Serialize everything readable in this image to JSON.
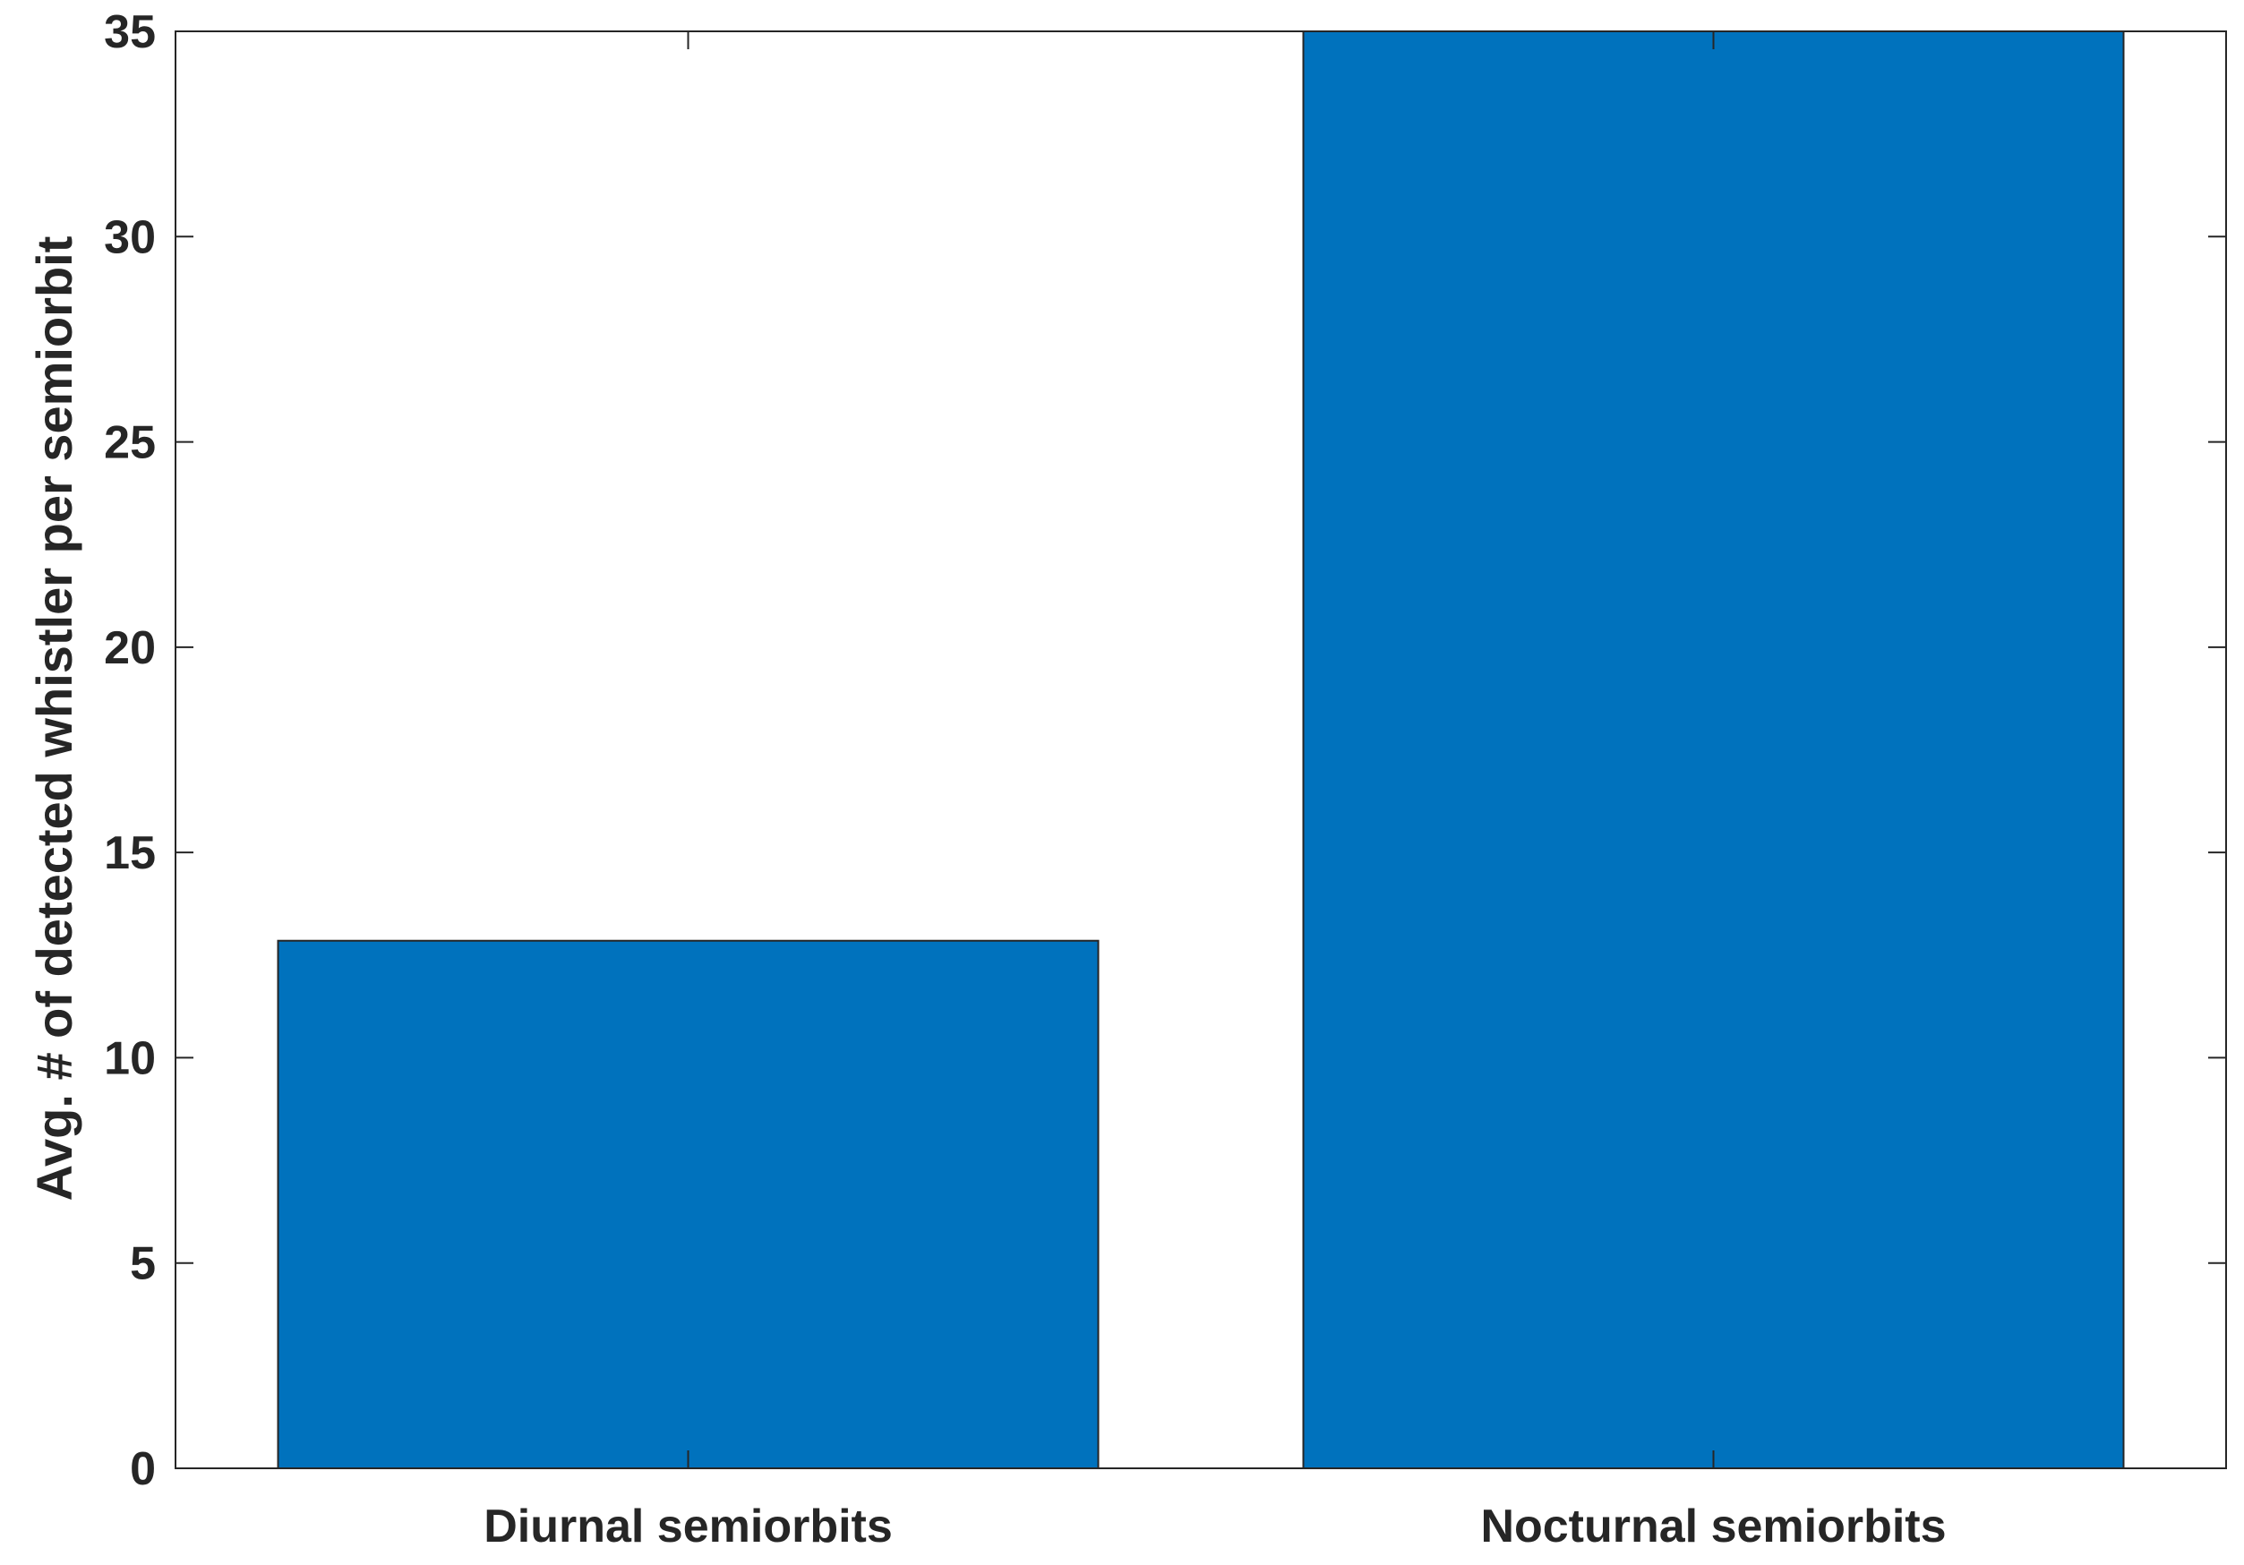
{
  "chart_data": {
    "type": "bar",
    "categories": [
      "Diurnal semiorbits",
      "Nocturnal semiorbits"
    ],
    "values": [
      12.85,
      35
    ],
    "ylabel": "Avg. # of detected whistler per semiorbit",
    "xlabel": "",
    "ylim": [
      0,
      35
    ],
    "yticks": [
      0,
      5,
      10,
      15,
      20,
      25,
      30,
      35
    ],
    "xlim": [
      0.5,
      2.5
    ],
    "grid": false,
    "bar_color": "#0072BD",
    "axis_color": "#262626"
  }
}
